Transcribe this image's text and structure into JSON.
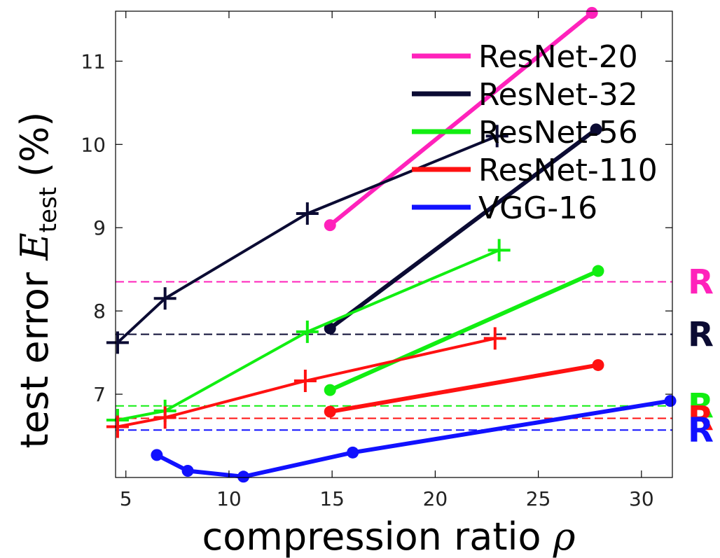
{
  "chart_data": {
    "type": "line",
    "xlabel": "compression ratio",
    "xlabel_symbol": "ρ",
    "ylabel": "test error",
    "ylabel_symbol": "E",
    "ylabel_subscript": "test",
    "ylabel_unit": "(%)",
    "xlim": [
      4.5,
      31.5
    ],
    "ylim": [
      6.0,
      11.6
    ],
    "xticks": [
      5,
      10,
      15,
      20,
      25,
      30
    ],
    "yticks": [
      7,
      8,
      9,
      10,
      11
    ],
    "grid": false,
    "legend_position": "top-right",
    "legend": [
      {
        "name": "ResNet-20",
        "color": "#ff22bb"
      },
      {
        "name": "ResNet-32",
        "color": "#0b0b33"
      },
      {
        "name": "ResNet-56",
        "color": "#11ee11"
      },
      {
        "name": "ResNet-110",
        "color": "#ff1111"
      },
      {
        "name": "VGG-16",
        "color": "#1111ff"
      }
    ],
    "series": [
      {
        "model": "ResNet-20",
        "marker": "dot",
        "color": "#ff22bb",
        "x": [
          14.9,
          27.6
        ],
        "y": [
          9.03,
          11.58
        ]
      },
      {
        "model": "ResNet-32",
        "marker": "plus",
        "color": "#0b0b33",
        "x": [
          4.6,
          6.9,
          13.8,
          23.0
        ],
        "y": [
          7.62,
          8.15,
          9.17,
          10.1
        ]
      },
      {
        "model": "ResNet-32",
        "marker": "dot",
        "color": "#0b0b33",
        "x": [
          14.9,
          27.8
        ],
        "y": [
          7.79,
          10.18
        ]
      },
      {
        "model": "ResNet-56",
        "marker": "plus",
        "color": "#11ee11",
        "x": [
          4.6,
          6.9,
          13.8,
          23.1
        ],
        "y": [
          6.69,
          6.8,
          7.75,
          8.73
        ]
      },
      {
        "model": "ResNet-56",
        "marker": "dot",
        "color": "#11ee11",
        "x": [
          14.9,
          27.9
        ],
        "y": [
          7.05,
          8.48
        ]
      },
      {
        "model": "ResNet-110",
        "marker": "plus",
        "color": "#ff1111",
        "x": [
          4.6,
          6.9,
          13.7,
          22.9
        ],
        "y": [
          6.61,
          6.72,
          7.16,
          7.67
        ]
      },
      {
        "model": "ResNet-110",
        "marker": "dot",
        "color": "#ff1111",
        "x": [
          14.9,
          27.9
        ],
        "y": [
          6.79,
          7.35
        ]
      },
      {
        "model": "VGG-16",
        "marker": "dot",
        "color": "#1111ff",
        "x": [
          6.5,
          8.0,
          10.7,
          16.0,
          31.4
        ],
        "y": [
          6.27,
          6.08,
          6.01,
          6.3,
          6.92
        ]
      }
    ],
    "reference_lines": [
      {
        "model": "ResNet-20",
        "y": 8.35,
        "label": "R",
        "color": "#ff22bb"
      },
      {
        "model": "ResNet-32",
        "y": 7.72,
        "label": "R",
        "color": "#0b0b33"
      },
      {
        "model": "ResNet-56",
        "y": 6.86,
        "label": "R",
        "color": "#11ee11"
      },
      {
        "model": "ResNet-110",
        "y": 6.71,
        "label": "R",
        "color": "#ff1111"
      },
      {
        "model": "VGG-16",
        "y": 6.57,
        "label": "R",
        "color": "#1111ff"
      }
    ]
  }
}
